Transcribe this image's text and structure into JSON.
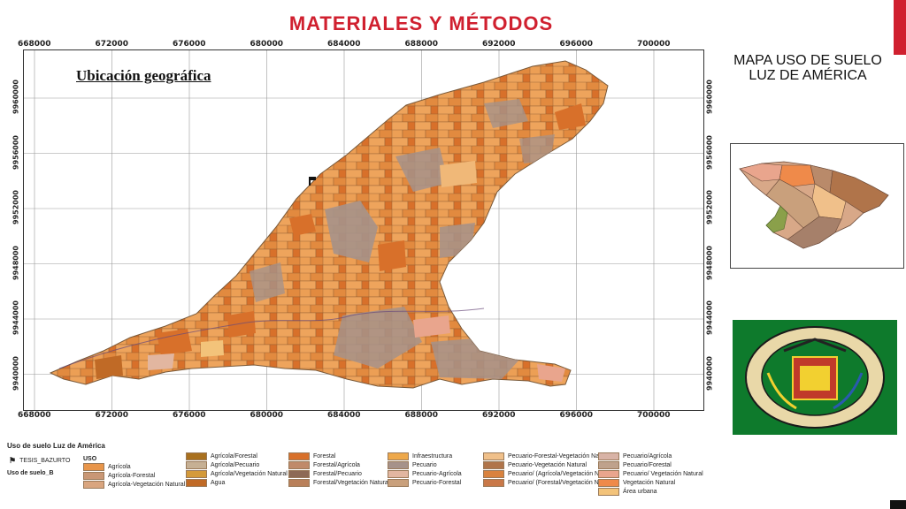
{
  "slide": {
    "title": "MATERIALES Y MÉTODOS"
  },
  "map": {
    "subtitle": "Ubicación geográfica",
    "x_ticks": [
      "668000",
      "672000",
      "676000",
      "680000",
      "684000",
      "688000",
      "692000",
      "696000",
      "700000"
    ],
    "y_ticks": [
      "9960000",
      "9956000",
      "9952000",
      "9948000",
      "9944000",
      "9940000"
    ],
    "colors": {
      "base": "#e8954a",
      "gray": "#a6928a",
      "dark_orange": "#d8702a",
      "light": "#f0b878",
      "pink": "#e9a58d",
      "border": "#7a5a3a"
    }
  },
  "right_panel": {
    "title_line1": "MAPA USO DE SUELO",
    "title_line2": "LUZ DE AMÉRICA",
    "seal_text_top": "ESCUELA POLITÉCNICA DEL EJÉRCITO",
    "seal_text_bottom": "ECUADOR"
  },
  "legend": {
    "header": "Uso de suelo Luz de América",
    "point_layer": "TESIS_BAZURTO",
    "polygon_layer": "Uso de suelo_B",
    "field_name": "USO",
    "items": [
      {
        "label": "Agrícola",
        "color": "#e8954a"
      },
      {
        "label": "Agrícola-Forestal",
        "color": "#c99775"
      },
      {
        "label": "Agrícola-Vegetación Natural",
        "color": "#d9a57f"
      },
      {
        "label": "Agrícola/Forestal",
        "color": "#a9701e"
      },
      {
        "label": "Agrícola/Pecuario",
        "color": "#c6b094"
      },
      {
        "label": "Agrícola/Vegetación Natural",
        "color": "#d49a3a"
      },
      {
        "label": "Agua",
        "color": "#c06a26"
      },
      {
        "label": "Forestal",
        "color": "#d8702a"
      },
      {
        "label": "Forestal/Agrícola",
        "color": "#c08a6a"
      },
      {
        "label": "Forestal/Pecuario",
        "color": "#8d6a55"
      },
      {
        "label": "Forestal/Vegetación Natural",
        "color": "#b9805a"
      },
      {
        "label": "Infraestructura",
        "color": "#eea84a"
      },
      {
        "label": "Pecuario",
        "color": "#a6928a"
      },
      {
        "label": "Pecuario-Agrícola",
        "color": "#e2b6a0"
      },
      {
        "label": "Pecuario-Forestal",
        "color": "#c9a07c"
      },
      {
        "label": "Pecuario-Forestal-Vegetación Natural",
        "color": "#f0c08a"
      },
      {
        "label": "Pecuario-Vegetación Natural",
        "color": "#b0744a"
      },
      {
        "label": "Pecuario/ (Agrícola/Vegetación Natural)",
        "color": "#d9823e"
      },
      {
        "label": "Pecuario/ (Forestal/Vegetación Natural)",
        "color": "#c97848"
      },
      {
        "label": "Pecuario/Agrícola",
        "color": "#d8b3a6"
      },
      {
        "label": "Pecuario/Forestal",
        "color": "#bfa28c"
      },
      {
        "label": "Pecuario/ Vegetación Natural",
        "color": "#e9a58d"
      },
      {
        "label": "Vegetación Natural",
        "color": "#ef8a4a"
      },
      {
        "label": "Área urbana",
        "color": "#f3c37a"
      }
    ]
  }
}
